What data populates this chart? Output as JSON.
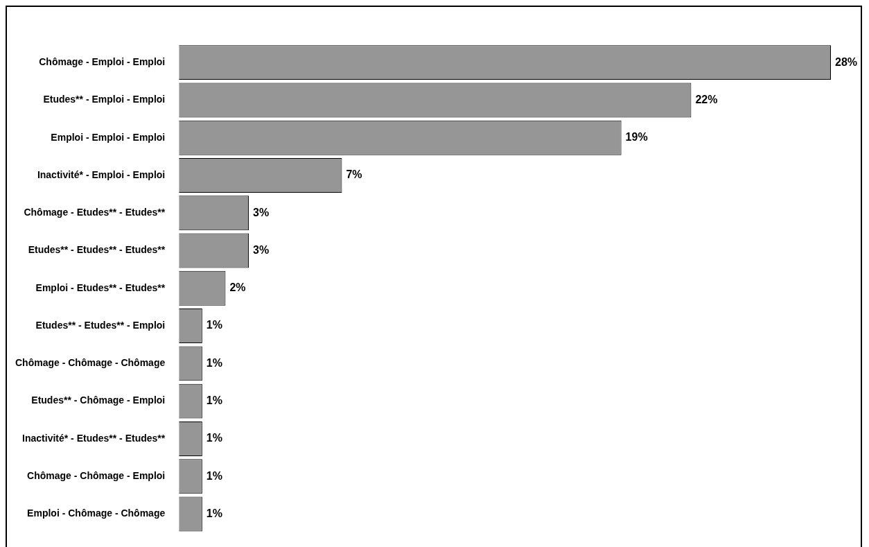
{
  "chart_data": {
    "type": "bar",
    "orientation": "horizontal",
    "categories": [
      "Chômage - Emploi - Emploi",
      "Etudes** - Emploi - Emploi",
      "Emploi - Emploi - Emploi",
      "Inactivité* - Emploi - Emploi",
      "Chômage - Etudes** - Etudes**",
      "Etudes** - Etudes** - Etudes**",
      "Emploi - Etudes** - Etudes**",
      "Etudes** - Etudes** - Emploi",
      "Chômage - Chômage - Chômage",
      "Etudes** - Chômage - Emploi",
      "Inactivité* - Etudes** - Etudes**",
      "Chômage - Chômage - Emploi",
      "Emploi - Chômage - Chômage"
    ],
    "values": [
      28,
      22,
      19,
      7,
      3,
      3,
      2,
      1,
      1,
      1,
      1,
      1,
      1
    ],
    "value_labels": [
      "28%",
      "22%",
      "19%",
      "7%",
      "3%",
      "3%",
      "2%",
      "1%",
      "1%",
      "1%",
      "1%",
      "1%",
      "1%"
    ],
    "color": "#969696"
  }
}
